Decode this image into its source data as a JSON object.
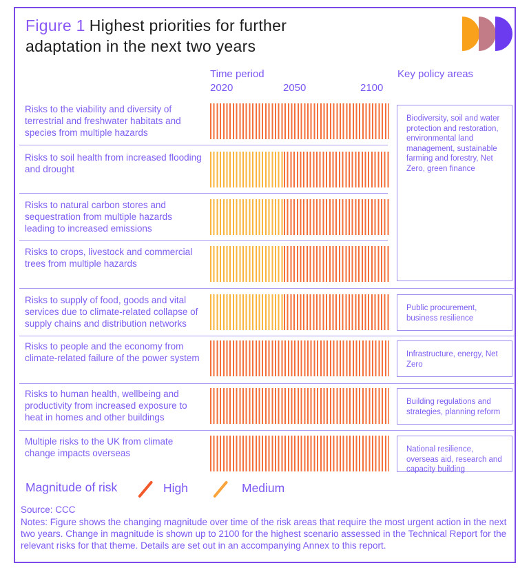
{
  "figure": {
    "label": "Figure 1",
    "title": "Highest priorities for further adaptation in the next two years"
  },
  "header": {
    "time_period": "Time period",
    "key_policy_areas": "Key policy areas",
    "ticks": [
      "2020",
      "2050",
      "2100"
    ]
  },
  "chart_data": {
    "type": "heatmap",
    "title": "Figure 1 Highest priorities for further adaptation in the next two years",
    "xlabel": "Time period",
    "x_range": [
      2020,
      2100
    ],
    "x_ticks": [
      2020,
      2050,
      2100
    ],
    "legend_position": "bottom",
    "rows": [
      {
        "risk": "Risks to the viability and diversity of terrestrial and freshwater habitats and species from multiple hazards",
        "segments": [
          {
            "magnitude": "High",
            "from": 2020,
            "to": 2100
          }
        ]
      },
      {
        "risk": "Risks to soil health from increased flooding and drought",
        "segments": [
          {
            "magnitude": "Medium",
            "from": 2020,
            "to": 2053
          },
          {
            "magnitude": "High",
            "from": 2053,
            "to": 2100
          }
        ]
      },
      {
        "risk": "Risks to natural carbon stores and sequestration from multiple hazards leading to increased emissions",
        "segments": [
          {
            "magnitude": "Medium",
            "from": 2020,
            "to": 2053
          },
          {
            "magnitude": "High",
            "from": 2053,
            "to": 2100
          }
        ]
      },
      {
        "risk": "Risks to crops, livestock and commercial trees from multiple hazards",
        "segments": [
          {
            "magnitude": "Medium",
            "from": 2020,
            "to": 2053
          },
          {
            "magnitude": "High",
            "from": 2053,
            "to": 2100
          }
        ]
      },
      {
        "risk": "Risks to supply of food, goods and vital services due to climate-related collapse of supply chains and distribution networks",
        "segments": [
          {
            "magnitude": "Medium",
            "from": 2020,
            "to": 2053
          },
          {
            "magnitude": "High",
            "from": 2053,
            "to": 2100
          }
        ]
      },
      {
        "risk": "Risks to people and the economy from climate-related failure of the power system",
        "segments": [
          {
            "magnitude": "High",
            "from": 2020,
            "to": 2100
          }
        ]
      },
      {
        "risk": "Risks to human health, wellbeing and productivity from increased exposure to heat in homes and other buildings",
        "segments": [
          {
            "magnitude": "High",
            "from": 2020,
            "to": 2100
          }
        ]
      },
      {
        "risk": "Multiple risks to the UK from climate change impacts overseas",
        "segments": [
          {
            "magnitude": "High",
            "from": 2020,
            "to": 2100
          }
        ]
      }
    ]
  },
  "policy_boxes": [
    {
      "text": "Biodiversity, soil and water protection and restoration, environmental land management, sustainable farming and forestry, Net Zero, green finance",
      "spans_rows": "1-4"
    },
    {
      "text": "Public procurement, business resilience",
      "spans_rows": "5"
    },
    {
      "text": "Infrastructure, energy, Net Zero",
      "spans_rows": "6"
    },
    {
      "text": "Building regulations and strategies, planning reform",
      "spans_rows": "7"
    },
    {
      "text": "National resilience, overseas aid, research and capacity building",
      "spans_rows": "8"
    }
  ],
  "legend": {
    "title": "Magnitude of risk",
    "items": [
      {
        "label": "High",
        "color": "#F1592B"
      },
      {
        "label": "Medium",
        "color": "#F9A33C"
      }
    ]
  },
  "footer": {
    "source": "Source: CCC",
    "notes": "Notes: Figure shows the changing magnitude over time of the risk areas that require the most urgent action in the next two years. Change in magnitude is shown up to 2100 for the highest scenario assessed in the Technical Report for the relevant risks for that theme. Details are set out in an accompanying Annex to this report."
  },
  "colors": {
    "high": "#F3703A",
    "medium": "#F8B43C",
    "purple_text": "#7C58F2",
    "border": "#7B49E8",
    "divider": "#AA9DF3",
    "box_border": "#9D8DF0",
    "logo": [
      "#F9A11B",
      "#C17C88",
      "#6C3BF0"
    ]
  }
}
